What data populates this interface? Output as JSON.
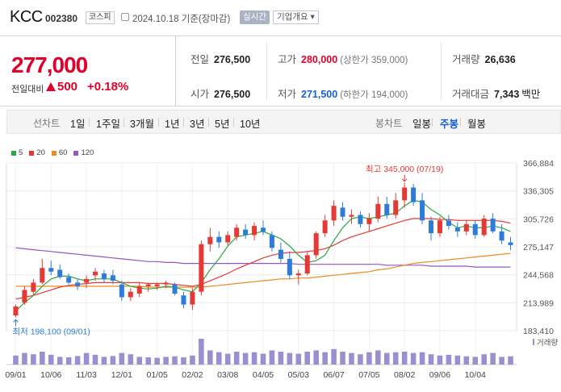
{
  "header": {
    "name": "KCC",
    "code": "002380",
    "market": "코스피",
    "date": "2024.10.18 기준(장마감)",
    "realtime_label": "실시간",
    "company_label": "기업개요 ▾"
  },
  "price": {
    "current": "277,000",
    "change_label": "전일대비",
    "change_amount": "500",
    "change_rate": "+0.18%",
    "up_color": "#e1002a"
  },
  "stats": {
    "prev_close": {
      "label": "전일",
      "value": "276,500"
    },
    "high": {
      "label": "고가",
      "value": "280,000",
      "sub": "(상한가 359,000)"
    },
    "volume": {
      "label": "거래량",
      "value": "26,636"
    },
    "open": {
      "label": "시가",
      "value": "276,500"
    },
    "low": {
      "label": "저가",
      "value": "271,500",
      "sub": "(하한가 194,000)"
    },
    "amount": {
      "label": "거래대금",
      "value": "7,343",
      "unit": "백만"
    }
  },
  "toolbar": {
    "line_label": "선차트",
    "line_items": [
      "1일",
      "1주일",
      "3개월",
      "1년",
      "3년",
      "5년",
      "10년"
    ],
    "candle_label": "봉차트",
    "candle_items": [
      "일봉",
      "주봉",
      "월봉"
    ],
    "active_candle": "주봉"
  },
  "legend": [
    {
      "label": "5",
      "color": "#27a845"
    },
    {
      "label": "20",
      "color": "#e53935"
    },
    {
      "label": "60",
      "color": "#ef8a1c"
    },
    {
      "label": "120",
      "color": "#9355c7"
    }
  ],
  "chart_data": {
    "type": "candlestick",
    "y_ticks": [
      "366,884",
      "336,305",
      "305,726",
      "275,147",
      "244,568",
      "213,989",
      "183,410"
    ],
    "y_range": [
      183410,
      366884
    ],
    "x_ticks": [
      "09/01",
      "10/06",
      "11/03",
      "12/01",
      "01/05",
      "02/02",
      "03/08",
      "04/05",
      "05/03",
      "06/07",
      "07/05",
      "08/02",
      "09/06",
      "10/04"
    ],
    "max_annotation": "최고 345,000 (07/19)",
    "min_annotation": "최저 198,100 (09/01)",
    "volume_label": "거래량",
    "up_color": "#e53935",
    "down_color": "#2f7bd8",
    "volume_color": "#9b8fd0",
    "candles": [
      {
        "o": 200000,
        "h": 212000,
        "l": 198100,
        "c": 210000
      },
      {
        "o": 214000,
        "h": 232000,
        "l": 212000,
        "c": 228000
      },
      {
        "o": 226000,
        "h": 240000,
        "l": 222000,
        "c": 236000
      },
      {
        "o": 236000,
        "h": 262000,
        "l": 234000,
        "c": 252000
      },
      {
        "o": 252000,
        "h": 260000,
        "l": 244000,
        "c": 248000
      },
      {
        "o": 250000,
        "h": 256000,
        "l": 240000,
        "c": 242000
      },
      {
        "o": 242000,
        "h": 246000,
        "l": 234000,
        "c": 236000
      },
      {
        "o": 236000,
        "h": 240000,
        "l": 228000,
        "c": 232000
      },
      {
        "o": 236000,
        "h": 244000,
        "l": 230000,
        "c": 240000
      },
      {
        "o": 244000,
        "h": 252000,
        "l": 238000,
        "c": 248000
      },
      {
        "o": 246000,
        "h": 250000,
        "l": 236000,
        "c": 240000
      },
      {
        "o": 244000,
        "h": 250000,
        "l": 234000,
        "c": 238000
      },
      {
        "o": 234000,
        "h": 238000,
        "l": 216000,
        "c": 220000
      },
      {
        "o": 220000,
        "h": 230000,
        "l": 216000,
        "c": 226000
      },
      {
        "o": 224000,
        "h": 236000,
        "l": 220000,
        "c": 232000
      },
      {
        "o": 232000,
        "h": 236000,
        "l": 226000,
        "c": 234000
      },
      {
        "o": 232000,
        "h": 236000,
        "l": 228000,
        "c": 234000
      },
      {
        "o": 234000,
        "h": 238000,
        "l": 230000,
        "c": 236000
      },
      {
        "o": 234000,
        "h": 236000,
        "l": 222000,
        "c": 224000
      },
      {
        "o": 222000,
        "h": 226000,
        "l": 208000,
        "c": 212000
      },
      {
        "o": 212000,
        "h": 230000,
        "l": 206000,
        "c": 226000
      },
      {
        "o": 226000,
        "h": 282000,
        "l": 222000,
        "c": 278000
      },
      {
        "o": 278000,
        "h": 296000,
        "l": 270000,
        "c": 286000
      },
      {
        "o": 286000,
        "h": 292000,
        "l": 274000,
        "c": 280000
      },
      {
        "o": 280000,
        "h": 292000,
        "l": 276000,
        "c": 288000
      },
      {
        "o": 286000,
        "h": 300000,
        "l": 282000,
        "c": 296000
      },
      {
        "o": 294000,
        "h": 300000,
        "l": 284000,
        "c": 288000
      },
      {
        "o": 288000,
        "h": 302000,
        "l": 282000,
        "c": 298000
      },
      {
        "o": 296000,
        "h": 304000,
        "l": 288000,
        "c": 292000
      },
      {
        "o": 288000,
        "h": 292000,
        "l": 270000,
        "c": 274000
      },
      {
        "o": 272000,
        "h": 280000,
        "l": 258000,
        "c": 262000
      },
      {
        "o": 262000,
        "h": 270000,
        "l": 240000,
        "c": 244000
      },
      {
        "o": 244000,
        "h": 250000,
        "l": 234000,
        "c": 246000
      },
      {
        "o": 246000,
        "h": 270000,
        "l": 244000,
        "c": 266000
      },
      {
        "o": 266000,
        "h": 292000,
        "l": 262000,
        "c": 290000
      },
      {
        "o": 290000,
        "h": 310000,
        "l": 286000,
        "c": 304000
      },
      {
        "o": 304000,
        "h": 326000,
        "l": 298000,
        "c": 320000
      },
      {
        "o": 318000,
        "h": 324000,
        "l": 304000,
        "c": 308000
      },
      {
        "o": 308000,
        "h": 316000,
        "l": 300000,
        "c": 310000
      },
      {
        "o": 310000,
        "h": 314000,
        "l": 296000,
        "c": 300000
      },
      {
        "o": 300000,
        "h": 312000,
        "l": 292000,
        "c": 306000
      },
      {
        "o": 306000,
        "h": 330000,
        "l": 302000,
        "c": 322000
      },
      {
        "o": 322000,
        "h": 330000,
        "l": 306000,
        "c": 310000
      },
      {
        "o": 310000,
        "h": 334000,
        "l": 306000,
        "c": 326000
      },
      {
        "o": 326000,
        "h": 345000,
        "l": 318000,
        "c": 340000
      },
      {
        "o": 340000,
        "h": 344000,
        "l": 320000,
        "c": 324000
      },
      {
        "o": 326000,
        "h": 334000,
        "l": 300000,
        "c": 304000
      },
      {
        "o": 304000,
        "h": 308000,
        "l": 282000,
        "c": 290000
      },
      {
        "o": 290000,
        "h": 308000,
        "l": 286000,
        "c": 304000
      },
      {
        "o": 304000,
        "h": 310000,
        "l": 294000,
        "c": 298000
      },
      {
        "o": 296000,
        "h": 302000,
        "l": 286000,
        "c": 292000
      },
      {
        "o": 292000,
        "h": 304000,
        "l": 288000,
        "c": 300000
      },
      {
        "o": 300000,
        "h": 304000,
        "l": 284000,
        "c": 288000
      },
      {
        "o": 288000,
        "h": 310000,
        "l": 286000,
        "c": 306000
      },
      {
        "o": 306000,
        "h": 312000,
        "l": 290000,
        "c": 292000
      },
      {
        "o": 292000,
        "h": 300000,
        "l": 278000,
        "c": 282000
      },
      {
        "o": 280000,
        "h": 286000,
        "l": 271500,
        "c": 277000
      }
    ],
    "ma5": [
      205000,
      214000,
      222000,
      232000,
      240000,
      243000,
      243000,
      240000,
      238000,
      240000,
      240000,
      240000,
      236000,
      232000,
      230000,
      229000,
      230000,
      232000,
      231000,
      228000,
      226000,
      236000,
      250000,
      262000,
      276000,
      286000,
      288000,
      290000,
      292000,
      288000,
      284000,
      276000,
      266000,
      258000,
      260000,
      266000,
      282000,
      296000,
      306000,
      308000,
      306000,
      308000,
      310000,
      312000,
      320000,
      326000,
      324000,
      316000,
      310000,
      302000,
      296000,
      298000,
      296000,
      296000,
      298000,
      296000,
      292000
    ],
    "ma20": [
      218000,
      220000,
      222000,
      225000,
      228000,
      231000,
      233000,
      234000,
      235000,
      236000,
      236000,
      236000,
      236000,
      236000,
      236000,
      235000,
      235000,
      235000,
      234000,
      233000,
      232000,
      234000,
      238000,
      242000,
      246000,
      251000,
      255000,
      259000,
      263000,
      266000,
      268000,
      269000,
      269000,
      270000,
      271000,
      273000,
      277000,
      282000,
      286000,
      289000,
      292000,
      295000,
      298000,
      301000,
      304000,
      306000,
      306000,
      306000,
      305000,
      305000,
      304000,
      304000,
      304000,
      304000,
      304000,
      303000,
      301000
    ],
    "ma60": [
      232000,
      232000,
      232000,
      232000,
      232000,
      232000,
      232000,
      232000,
      232000,
      232000,
      232000,
      232000,
      232000,
      232000,
      232000,
      231000,
      231000,
      231000,
      231000,
      231000,
      231000,
      231000,
      232000,
      233000,
      234000,
      235000,
      236000,
      237000,
      238000,
      239000,
      240000,
      240000,
      241000,
      241000,
      242000,
      243000,
      244000,
      245000,
      246000,
      247000,
      248000,
      250000,
      251000,
      253000,
      255000,
      257000,
      258000,
      259000,
      260000,
      261000,
      262000,
      263000,
      264000,
      265000,
      266000,
      267000,
      268000
    ],
    "ma120": [
      274000,
      273000,
      272000,
      271000,
      270000,
      269000,
      268000,
      267000,
      266000,
      265000,
      264000,
      263000,
      262000,
      261000,
      260000,
      259000,
      259000,
      258000,
      258000,
      257000,
      257000,
      257000,
      257000,
      257000,
      257000,
      257000,
      257000,
      257000,
      257000,
      257000,
      257000,
      257000,
      256000,
      256000,
      256000,
      256000,
      256000,
      256000,
      256000,
      256000,
      256000,
      256000,
      255000,
      255000,
      255000,
      255000,
      255000,
      254000,
      254000,
      254000,
      254000,
      254000,
      253000,
      253000,
      253000,
      253000,
      253000
    ],
    "volume": [
      0.35,
      0.45,
      0.4,
      0.5,
      0.38,
      0.3,
      0.28,
      0.33,
      0.45,
      0.38,
      0.3,
      0.33,
      0.45,
      0.4,
      0.3,
      0.28,
      0.26,
      0.3,
      0.32,
      0.28,
      0.35,
      1.0,
      0.55,
      0.48,
      0.42,
      0.5,
      0.45,
      0.48,
      0.42,
      0.55,
      0.5,
      0.45,
      0.42,
      0.5,
      0.55,
      0.48,
      0.6,
      0.5,
      0.45,
      0.4,
      0.48,
      0.55,
      0.45,
      0.48,
      0.5,
      0.45,
      0.48,
      0.4,
      0.35,
      0.38,
      0.35,
      0.32,
      0.3,
      0.4,
      0.45,
      0.3,
      0.32
    ]
  }
}
